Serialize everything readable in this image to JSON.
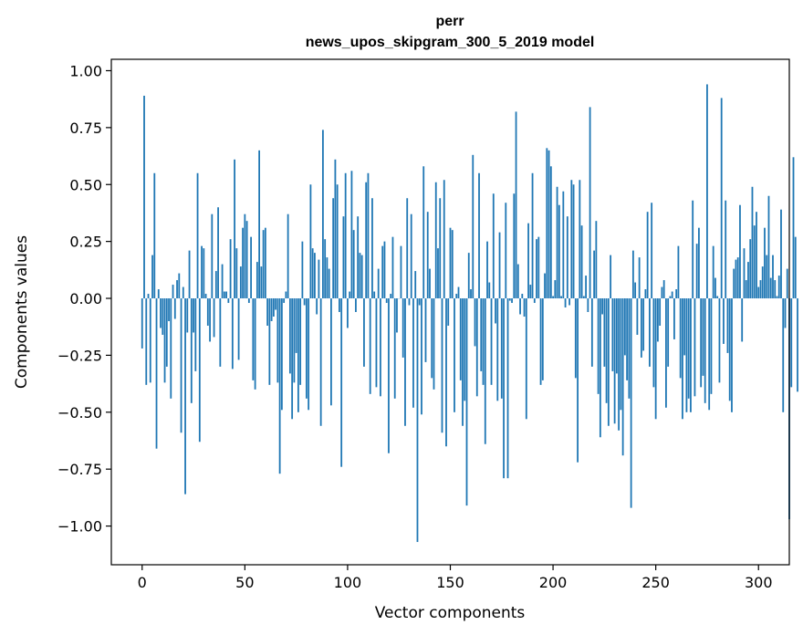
{
  "chart_data": {
    "type": "bar",
    "title": "perr",
    "subtitle": "news_upos_skipgram_300_5_2019 model",
    "xlabel": "Vector components",
    "ylabel": "Components values",
    "xlim": [
      -15,
      315
    ],
    "ylim": [
      -1.17,
      1.05
    ],
    "xticks": [
      0,
      50,
      100,
      150,
      200,
      250,
      300
    ],
    "yticks": [
      -1.0,
      -0.75,
      -0.5,
      -0.25,
      0.0,
      0.25,
      0.5,
      0.75,
      1.0
    ],
    "ytick_labels": [
      "−1.00",
      "−0.75",
      "−0.50",
      "−0.25",
      "0.00",
      "0.25",
      "0.50",
      "0.75",
      "1.00"
    ],
    "bar_color": "#1f77b4",
    "values": [
      -0.22,
      0.89,
      -0.38,
      0.02,
      -0.37,
      0.19,
      0.55,
      -0.66,
      0.04,
      -0.13,
      -0.16,
      -0.37,
      -0.3,
      -0.1,
      -0.44,
      0.06,
      -0.09,
      0.08,
      0.11,
      -0.59,
      0.05,
      -0.86,
      -0.15,
      0.21,
      -0.46,
      -0.15,
      -0.32,
      0.55,
      -0.63,
      0.23,
      0.22,
      0.02,
      -0.12,
      -0.19,
      0.37,
      -0.17,
      0.12,
      0.4,
      -0.3,
      0.15,
      0.03,
      0.03,
      -0.02,
      0.26,
      -0.31,
      0.61,
      0.22,
      -0.27,
      0.14,
      0.31,
      0.37,
      0.34,
      -0.02,
      0.27,
      -0.36,
      -0.4,
      0.16,
      0.65,
      0.14,
      0.3,
      0.31,
      -0.12,
      -0.38,
      -0.1,
      -0.08,
      -0.05,
      -0.37,
      -0.77,
      -0.49,
      -0.02,
      0.03,
      0.37,
      -0.33,
      -0.53,
      -0.37,
      -0.24,
      -0.5,
      -0.38,
      0.25,
      -0.03,
      -0.44,
      -0.49,
      0.5,
      0.22,
      0.2,
      -0.07,
      0.17,
      -0.56,
      0.74,
      0.26,
      0.18,
      0.13,
      -0.47,
      0.44,
      0.61,
      0.5,
      -0.06,
      -0.74,
      0.36,
      0.55,
      -0.13,
      0.03,
      0.56,
      0.3,
      -0.06,
      0.36,
      0.2,
      0.19,
      -0.3,
      0.51,
      0.55,
      -0.42,
      0.44,
      0.03,
      -0.39,
      0.13,
      -0.43,
      0.23,
      0.25,
      -0.02,
      -0.68,
      0.02,
      0.27,
      -0.44,
      -0.15,
      0.0,
      0.23,
      -0.26,
      -0.56,
      0.44,
      -0.03,
      0.37,
      -0.48,
      0.12,
      -1.07,
      -0.03,
      -0.51,
      0.58,
      -0.28,
      0.38,
      0.13,
      -0.35,
      -0.4,
      0.51,
      0.22,
      0.44,
      -0.59,
      0.52,
      -0.65,
      -0.12,
      0.31,
      0.3,
      -0.5,
      0.02,
      0.05,
      -0.36,
      -0.56,
      -0.45,
      -0.91,
      0.2,
      0.04,
      0.63,
      -0.21,
      -0.43,
      0.55,
      -0.32,
      -0.38,
      -0.64,
      0.25,
      0.07,
      -0.38,
      0.46,
      -0.11,
      -0.45,
      0.29,
      -0.44,
      -0.79,
      0.42,
      -0.79,
      -0.01,
      -0.02,
      0.46,
      0.82,
      0.15,
      -0.07,
      0.02,
      -0.08,
      -0.53,
      0.33,
      0.06,
      0.55,
      -0.02,
      0.26,
      0.27,
      -0.38,
      -0.36,
      0.11,
      0.66,
      0.65,
      0.58,
      0.01,
      0.08,
      0.49,
      0.41,
      0.01,
      0.47,
      -0.04,
      0.36,
      -0.03,
      0.52,
      0.5,
      -0.35,
      -0.72,
      0.52,
      0.32,
      0.01,
      0.1,
      -0.06,
      0.84,
      -0.3,
      0.21,
      0.34,
      -0.42,
      -0.61,
      -0.07,
      -0.3,
      -0.46,
      -0.56,
      0.19,
      -0.32,
      -0.55,
      -0.33,
      -0.58,
      -0.49,
      -0.69,
      -0.25,
      -0.36,
      -0.44,
      -0.92,
      0.21,
      0.07,
      -0.16,
      0.18,
      -0.26,
      -0.23,
      0.04,
      0.38,
      -0.3,
      0.42,
      -0.39,
      -0.53,
      -0.19,
      -0.12,
      0.05,
      0.08,
      -0.48,
      -0.3,
      0.01,
      0.03,
      -0.18,
      0.04,
      0.23,
      -0.35,
      -0.53,
      -0.25,
      -0.5,
      -0.44,
      -0.5,
      0.43,
      -0.43,
      0.24,
      0.31,
      -0.39,
      -0.34,
      -0.46,
      0.94,
      -0.49,
      -0.42,
      0.23,
      0.09,
      0.01,
      -0.37,
      0.88,
      -0.2,
      0.43,
      -0.24,
      -0.45,
      -0.5,
      0.13,
      0.17,
      0.18,
      0.41,
      -0.19,
      0.22,
      0.08,
      0.16,
      0.26,
      0.49,
      0.32,
      0.38,
      0.05,
      0.08,
      0.14,
      0.31,
      0.19,
      0.45,
      0.09,
      0.19,
      0.08,
      0.01,
      0.1,
      0.39,
      -0.5,
      -0.13,
      0.13,
      -0.97,
      -0.39,
      0.62,
      0.27,
      -0.41
    ]
  }
}
